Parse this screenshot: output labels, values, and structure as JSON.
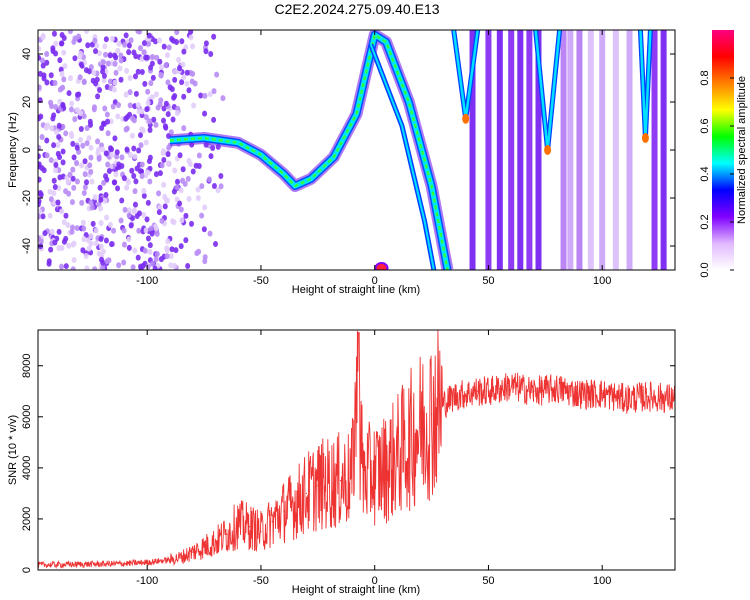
{
  "title": "C2E2.2024.275.09.40.E13",
  "chart_data": [
    {
      "type": "heatmap",
      "xlabel": "Height of straight line (km)",
      "ylabel": "Frequency (Hz)",
      "xlim": [
        -148,
        132
      ],
      "ylim": [
        -50,
        50
      ],
      "xticks": [
        -100,
        -50,
        0,
        50,
        100
      ],
      "yticks": [
        -40,
        -20,
        0,
        20,
        40
      ],
      "colorbar": {
        "label": "Normalized spectral amplitude",
        "range": [
          0.0,
          1.0
        ],
        "ticks": [
          0.0,
          0.2,
          0.4,
          0.6,
          0.8
        ],
        "tick_labels": [
          "0.0",
          "0.2",
          "0.4",
          "0.6",
          "0.8"
        ],
        "colors": [
          "#ffffff",
          "#e0b8ff",
          "#8000ff",
          "#0000ff",
          "#00ffff",
          "#00ff00",
          "#ffff00",
          "#ff8000",
          "#ff0000",
          "#ff0080"
        ]
      },
      "features": [
        {
          "kind": "noise",
          "x_range": [
            -148,
            -75
          ]
        },
        {
          "kind": "ridge",
          "points": [
            [
              -90,
              4
            ],
            [
              -75,
              5
            ],
            [
              -60,
              3
            ],
            [
              -50,
              -2
            ],
            [
              -40,
              -10
            ],
            [
              -35,
              -15
            ],
            [
              -28,
              -12
            ],
            [
              -18,
              -3
            ],
            [
              -8,
              15
            ],
            [
              0,
              48
            ],
            [
              5,
              45
            ],
            [
              15,
              20
            ],
            [
              25,
              -15
            ],
            [
              32,
              -50
            ]
          ]
        },
        {
          "kind": "dip",
          "x": 40,
          "y": 13
        },
        {
          "kind": "dip",
          "x": 76,
          "y": 0
        },
        {
          "kind": "dip",
          "x": 119,
          "y": 5
        },
        {
          "kind": "peak",
          "x": 3,
          "y": -50
        }
      ]
    },
    {
      "type": "line",
      "xlabel": "Height of straight line (km)",
      "ylabel": "SNR (10 * v/v)",
      "xlim": [
        -148,
        132
      ],
      "ylim": [
        0,
        9400
      ],
      "xticks": [
        -100,
        -50,
        0,
        50,
        100
      ],
      "yticks": [
        0,
        2000,
        4000,
        6000,
        8000
      ],
      "color": "#ee3333",
      "series": [
        {
          "x": [
            -148,
            -130,
            -110,
            -100,
            -90,
            -85,
            -80,
            -75,
            -70,
            -65,
            -60,
            -55,
            -50,
            -45,
            -40,
            -35,
            -30,
            -25,
            -20,
            -15,
            -10,
            -8,
            -5,
            0,
            5,
            10,
            15,
            20,
            25,
            30,
            35,
            40,
            45,
            50,
            55,
            60,
            70,
            80,
            90,
            100,
            110,
            120,
            132
          ],
          "y": [
            200,
            220,
            250,
            300,
            400,
            500,
            700,
            900,
            1100,
            1400,
            1800,
            1700,
            1500,
            1900,
            2300,
            2600,
            3000,
            3300,
            3400,
            3500,
            3600,
            7000,
            3700,
            3800,
            4000,
            4500,
            5000,
            5600,
            6100,
            6500,
            6800,
            6900,
            7000,
            7000,
            7100,
            7200,
            7000,
            7100,
            6900,
            6900,
            6700,
            6800,
            6700
          ]
        }
      ]
    }
  ]
}
